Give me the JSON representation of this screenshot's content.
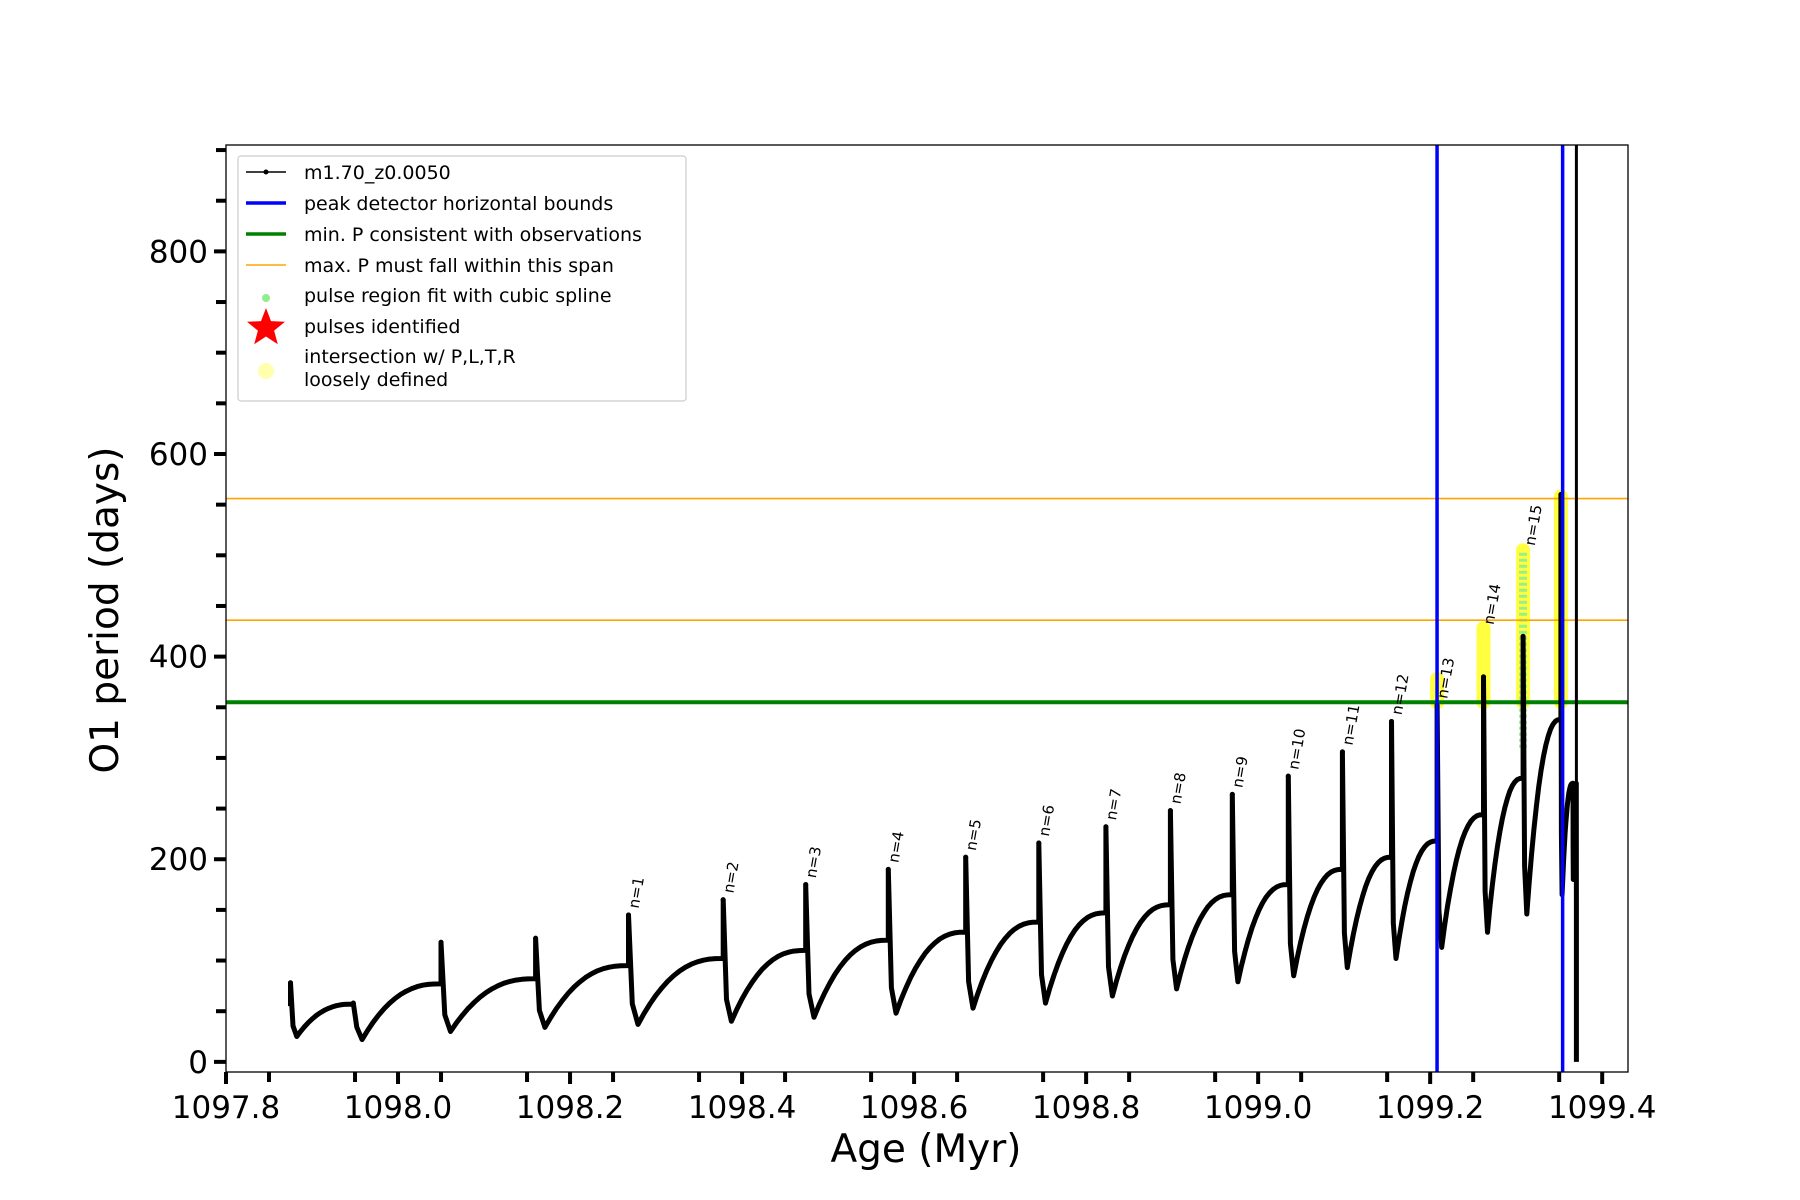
{
  "chart_data": {
    "type": "line",
    "xlabel": "Age (Myr)",
    "ylabel": "O1 period (days)",
    "xlim": [
      1097.8,
      1099.43
    ],
    "ylim": [
      -10,
      905
    ],
    "x_ticks": [
      {
        "value": 1097.8,
        "label": "1097.8"
      },
      {
        "value": 1098.0,
        "label": "1098.0"
      },
      {
        "value": 1098.2,
        "label": "1098.2"
      },
      {
        "value": 1098.4,
        "label": "1098.4"
      },
      {
        "value": 1098.6,
        "label": "1098.6"
      },
      {
        "value": 1098.8,
        "label": "1098.8"
      },
      {
        "value": 1099.0,
        "label": "1099.0"
      },
      {
        "value": 1099.2,
        "label": "1099.2"
      },
      {
        "value": 1099.4,
        "label": "1099.4"
      }
    ],
    "y_ticks": [
      {
        "value": 0,
        "label": "0"
      },
      {
        "value": 200,
        "label": "200"
      },
      {
        "value": 400,
        "label": "400"
      },
      {
        "value": 600,
        "label": "600"
      },
      {
        "value": 800,
        "label": "800"
      }
    ],
    "grid": false,
    "legend": {
      "placement": "top-left",
      "entries": [
        {
          "label": "m1.70_z0.0050",
          "kind": "line-dot",
          "color": "#000000"
        },
        {
          "label": "peak detector horizontal bounds",
          "kind": "line",
          "color": "#0000ff"
        },
        {
          "label": "min. P consistent with observations",
          "kind": "line",
          "color": "#008000"
        },
        {
          "label": "max. P must fall within this span",
          "kind": "thin-line",
          "color": "#ffa500"
        },
        {
          "label": "pulse region fit with cubic spline",
          "kind": "dot",
          "color": "#90ee90"
        },
        {
          "label": "pulses identified",
          "kind": "star",
          "color": "#ff0000"
        },
        {
          "label": "intersection w/ P,L,T,R",
          "label2": "loosely defined",
          "kind": "big-dot",
          "color": "#ffff99"
        }
      ]
    },
    "series": [
      {
        "name": "m1.70_z0.0050",
        "color": "#000000",
        "start": {
          "x": 1097.875,
          "y": 55
        },
        "pulses": [
          {
            "x": 1097.875,
            "peak": 78,
            "min": 25,
            "pre": 55
          },
          {
            "x": 1097.948,
            "peak": 58,
            "min": 22,
            "pre": 57
          },
          {
            "x": 1098.05,
            "peak": 118,
            "min": 30,
            "pre": 77
          },
          {
            "x": 1098.16,
            "peak": 122,
            "min": 34,
            "pre": 82
          },
          {
            "x": 1098.268,
            "peak": 145,
            "min": 37,
            "pre": 95
          },
          {
            "x": 1098.378,
            "peak": 160,
            "min": 40,
            "pre": 102
          },
          {
            "x": 1098.474,
            "peak": 175,
            "min": 44,
            "pre": 110
          },
          {
            "x": 1098.57,
            "peak": 190,
            "min": 48,
            "pre": 120
          },
          {
            "x": 1098.66,
            "peak": 202,
            "min": 53,
            "pre": 128
          },
          {
            "x": 1098.745,
            "peak": 216,
            "min": 58,
            "pre": 138
          },
          {
            "x": 1098.823,
            "peak": 232,
            "min": 65,
            "pre": 147
          },
          {
            "x": 1098.898,
            "peak": 248,
            "min": 72,
            "pre": 155
          },
          {
            "x": 1098.97,
            "peak": 264,
            "min": 79,
            "pre": 165
          },
          {
            "x": 1099.035,
            "peak": 282,
            "min": 85,
            "pre": 175
          },
          {
            "x": 1099.098,
            "peak": 306,
            "min": 93,
            "pre": 190
          },
          {
            "x": 1099.155,
            "peak": 336,
            "min": 102,
            "pre": 202
          },
          {
            "x": 1099.208,
            "peak": 352,
            "min": 113,
            "pre": 218
          },
          {
            "x": 1099.262,
            "peak": 380,
            "min": 128,
            "pre": 244
          },
          {
            "x": 1099.308,
            "peak": 420,
            "min": 146,
            "pre": 280
          },
          {
            "x": 1099.352,
            "peak": 560,
            "min": 165,
            "pre": 338
          },
          {
            "x": 1099.366,
            "peak": 270,
            "min": 180,
            "pre": 275
          }
        ],
        "end": {
          "x": 1099.37,
          "y": 0
        },
        "vertical_tail": {
          "x": 1099.37,
          "from": 150,
          "to": 905
        }
      }
    ],
    "reference_lines": [
      {
        "name": "peak detector horizontal bounds",
        "orientation": "vertical",
        "x": 1099.208,
        "color": "#0000ff"
      },
      {
        "name": "peak detector horizontal bounds",
        "orientation": "vertical",
        "x": 1099.354,
        "color": "#0000ff"
      },
      {
        "name": "min. P consistent with observations",
        "orientation": "horizontal",
        "y": 355,
        "color": "#008000"
      },
      {
        "name": "max. P must fall within this span",
        "orientation": "horizontal",
        "y": 436,
        "color": "#ffa500"
      },
      {
        "name": "max. P must fall within this span",
        "orientation": "horizontal",
        "y": 556,
        "color": "#ffa500"
      }
    ],
    "pulse_labels": [
      {
        "label": "n=1",
        "x": 1098.268,
        "y": 145
      },
      {
        "label": "n=2",
        "x": 1098.378,
        "y": 160
      },
      {
        "label": "n=3",
        "x": 1098.474,
        "y": 175
      },
      {
        "label": "n=4",
        "x": 1098.57,
        "y": 190
      },
      {
        "label": "n=5",
        "x": 1098.66,
        "y": 202
      },
      {
        "label": "n=6",
        "x": 1098.745,
        "y": 216
      },
      {
        "label": "n=7",
        "x": 1098.823,
        "y": 232
      },
      {
        "label": "n=8",
        "x": 1098.898,
        "y": 248
      },
      {
        "label": "n=9",
        "x": 1098.97,
        "y": 264
      },
      {
        "label": "n=10",
        "x": 1099.035,
        "y": 282
      },
      {
        "label": "n=11",
        "x": 1099.098,
        "y": 306
      },
      {
        "label": "n=12",
        "x": 1099.155,
        "y": 336
      },
      {
        "label": "n=13",
        "x": 1099.208,
        "y": 352
      },
      {
        "label": "n=14",
        "x": 1099.262,
        "y": 425
      },
      {
        "label": "n=15",
        "x": 1099.31,
        "y": 503
      }
    ],
    "spline_regions": [
      {
        "x": 1099.308,
        "y_from": 310,
        "y_to": 505,
        "color": "#90ee90"
      }
    ],
    "highlight_regions": [
      {
        "x": 1099.208,
        "y_from": 355,
        "y_to": 378,
        "color": "#ffff00"
      },
      {
        "x": 1099.262,
        "y_from": 355,
        "y_to": 428,
        "color": "#ffff00"
      },
      {
        "x": 1099.308,
        "y_from": 355,
        "y_to": 505,
        "color": "#ffff00"
      },
      {
        "x": 1099.352,
        "y_from": 355,
        "y_to": 558,
        "color": "#ffff00"
      }
    ]
  }
}
